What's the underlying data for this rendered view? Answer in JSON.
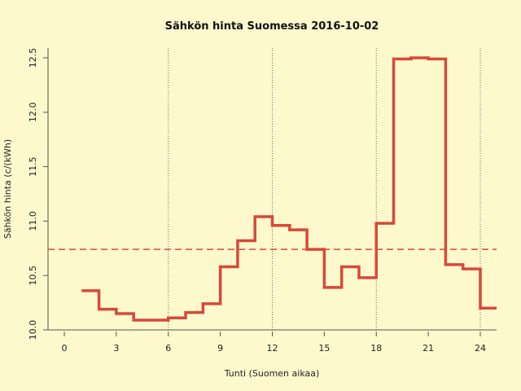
{
  "chart_data": {
    "type": "line",
    "step": true,
    "title": "Sähkön hinta Suomessa 2016-10-02",
    "xlabel": "Tunti (Suomen aikaa)",
    "ylabel": "Sähkön hinta (c/(kWh)",
    "xlim": [
      -1,
      25
    ],
    "ylim": [
      10.0,
      12.5
    ],
    "xticks": [
      0,
      3,
      6,
      9,
      12,
      15,
      18,
      21,
      24
    ],
    "yticks": [
      "10.0",
      "10.5",
      "11.0",
      "11.5",
      "12.0",
      "12.5"
    ],
    "vertical_gridlines": [
      6,
      12,
      18,
      24
    ],
    "series": [
      {
        "x": [
          1,
          2,
          3,
          4,
          5,
          6,
          7,
          8,
          9,
          10,
          11,
          12,
          13,
          14,
          15,
          16,
          17,
          18,
          19,
          20,
          21,
          22,
          23,
          24
        ],
        "values": [
          10.36,
          10.19,
          10.15,
          10.09,
          10.09,
          10.11,
          10.16,
          10.24,
          10.58,
          10.82,
          11.04,
          10.96,
          10.92,
          10.74,
          10.39,
          10.58,
          10.48,
          10.98,
          12.49,
          12.5,
          12.49,
          10.6,
          10.56,
          10.2
        ],
        "color": "#d9483b"
      }
    ],
    "mean_line": {
      "value": 10.74,
      "color": "#e0453a",
      "style": "dashed"
    },
    "background": "#fdf9cd"
  }
}
